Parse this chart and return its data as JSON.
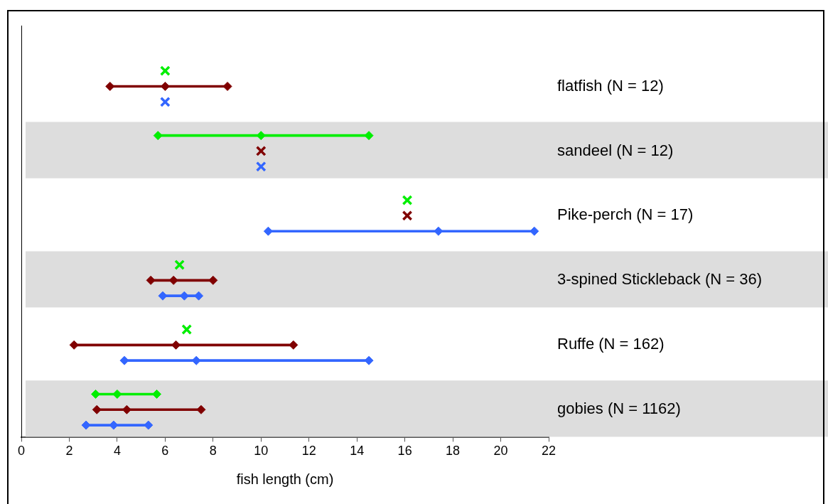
{
  "chart_data": {
    "type": "bar",
    "orientation": "horizontal",
    "xlabel": "fish length (cm)",
    "xlim": [
      0,
      22
    ],
    "xticks": [
      0,
      2,
      4,
      6,
      8,
      10,
      12,
      14,
      16,
      18,
      20,
      22
    ],
    "grid": false,
    "categories": [
      "flatfish (N = 12)",
      "sandeel (N = 12)",
      "Pike-perch (N = 17)",
      "3-spined Stickleback (N = 36)",
      "Ruffe (N = 162)",
      "gobies (N = 1162)"
    ],
    "bands": [
      {
        "axis": "y",
        "from": "sandeel (N = 12)",
        "to": "sandeel (N = 12)",
        "color": "#dddddd"
      },
      {
        "axis": "y",
        "from": "3-spined Stickleback (N = 36)",
        "to": "3-spined Stickleback (N = 36)",
        "color": "#dddddd"
      },
      {
        "axis": "y",
        "from": "gobies (N = 1162)",
        "to": "gobies (N = 1162)",
        "color": "#dddddd"
      }
    ],
    "series": [
      {
        "color": "#00ee00",
        "base": [
          null,
          5.7,
          null,
          null,
          null,
          3.1
        ],
        "values": [
          null,
          8.8,
          null,
          null,
          null,
          2.55
        ]
      },
      {
        "color": "#800000",
        "base": [
          3.7,
          null,
          null,
          5.4,
          2.2,
          3.15
        ],
        "values": [
          4.9,
          null,
          null,
          2.6,
          9.15,
          4.35
        ]
      },
      {
        "color": "#3366ff",
        "base": [
          null,
          null,
          10.3,
          5.9,
          4.3,
          2.7
        ],
        "values": [
          null,
          null,
          11.1,
          1.5,
          10.2,
          2.6
        ]
      },
      {
        "type": "scatter",
        "marker": "diamond",
        "color": "#00ee00",
        "values": [
          null,
          5.7,
          null,
          null,
          null,
          3.1
        ]
      },
      {
        "type": "scatter",
        "marker": "diamond",
        "color": "#00ee00",
        "values": [
          null,
          10,
          null,
          null,
          null,
          4.0
        ]
      },
      {
        "type": "scatter",
        "marker": "diamond",
        "color": "#00ee00",
        "values": [
          null,
          14.5,
          null,
          null,
          null,
          5.65
        ]
      },
      {
        "type": "scatter",
        "marker": "diamond",
        "color": "#800000",
        "values": [
          3.7,
          null,
          null,
          5.4,
          2.2,
          3.15
        ]
      },
      {
        "type": "scatter",
        "marker": "diamond",
        "color": "#800000",
        "values": [
          6,
          null,
          null,
          6.35,
          6.45,
          4.4
        ]
      },
      {
        "type": "scatter",
        "marker": "diamond",
        "color": "#800000",
        "values": [
          8.6,
          null,
          null,
          8.0,
          11.35,
          7.5
        ]
      },
      {
        "type": "scatter",
        "marker": "diamond",
        "color": "#3366ff",
        "values": [
          null,
          null,
          10.3,
          5.9,
          4.3,
          2.7
        ]
      },
      {
        "type": "scatter",
        "marker": "diamond",
        "color": "#3366ff",
        "values": [
          null,
          null,
          17.4,
          6.8,
          7.3,
          3.85
        ]
      },
      {
        "type": "scatter",
        "marker": "diamond",
        "color": "#3366ff",
        "values": [
          null,
          null,
          21.4,
          7.4,
          14.5,
          5.3
        ]
      },
      {
        "type": "scatter",
        "marker": "cross",
        "color": "#00ee00",
        "values": [
          6,
          null,
          16.1,
          6.6,
          6.9,
          null
        ]
      },
      {
        "type": "scatter",
        "marker": "cross",
        "color": "#800000",
        "values": [
          null,
          10,
          16.1,
          null,
          null,
          null
        ]
      },
      {
        "type": "scatter",
        "marker": "cross",
        "color": "#3366ff",
        "values": [
          6,
          10,
          null,
          null,
          null,
          null
        ]
      }
    ]
  }
}
